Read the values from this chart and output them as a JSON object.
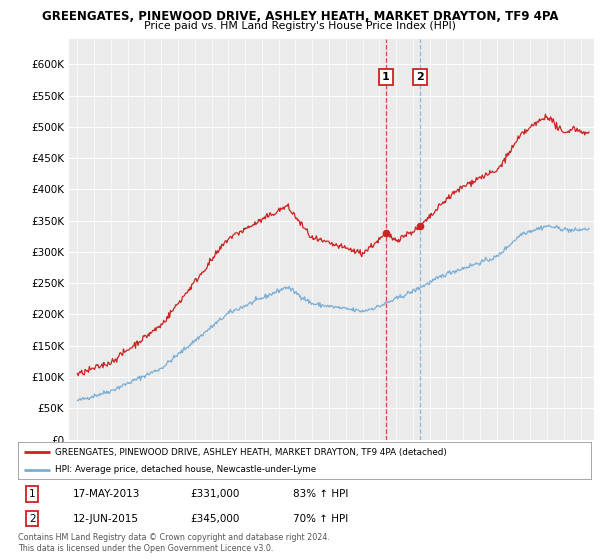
{
  "title_line1": "GREENGATES, PINEWOOD DRIVE, ASHLEY HEATH, MARKET DRAYTON, TF9 4PA",
  "title_line2": "Price paid vs. HM Land Registry's House Price Index (HPI)",
  "ylim": [
    0,
    620000
  ],
  "yticks": [
    0,
    50000,
    100000,
    150000,
    200000,
    250000,
    300000,
    350000,
    400000,
    450000,
    500000,
    550000,
    600000
  ],
  "ytick_labels": [
    "£0",
    "£50K",
    "£100K",
    "£150K",
    "£200K",
    "£250K",
    "£300K",
    "£350K",
    "£400K",
    "£450K",
    "£500K",
    "£550K",
    "£600K"
  ],
  "bg_color": "#ffffff",
  "plot_bg_color": "#ebebeb",
  "red_color": "#cc2222",
  "blue_color": "#7aaed6",
  "legend_line1": "GREENGATES, PINEWOOD DRIVE, ASHLEY HEATH, MARKET DRAYTON, TF9 4PA (detached)",
  "legend_line2": "HPI: Average price, detached house, Newcastle-under-Lyme",
  "footnote": "Contains HM Land Registry data © Crown copyright and database right 2024.\nThis data is licensed under the Open Government Licence v3.0.",
  "xlim_start": 1994.5,
  "xlim_end": 2025.8,
  "t1_year": 2013.38,
  "t2_year": 2015.45,
  "marker1_price": 331000,
  "marker2_price": 345000
}
